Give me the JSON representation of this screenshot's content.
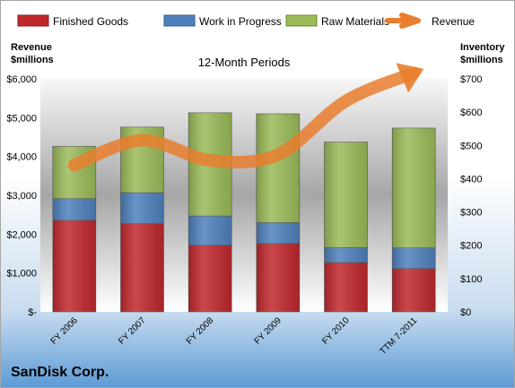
{
  "chart_data": {
    "type": "bar",
    "title": "12-Month Periods",
    "company": "SanDisk Corp.",
    "categories": [
      "FY 2006",
      "FY 2007",
      "FY 2008",
      "FY 2009",
      "FY 2010",
      "TTM 7-2011"
    ],
    "stacked": true,
    "y_left": {
      "label_line1": "Revenue",
      "label_line2": "$millions",
      "ticks": [
        "$-",
        "$1,000",
        "$2,000",
        "$3,000",
        "$4,000",
        "$5,000",
        "$6,000"
      ],
      "range": [
        0,
        6000
      ]
    },
    "y_right": {
      "label_line1": "Inventory",
      "label_line2": "$millions",
      "ticks": [
        "$0",
        "$100",
        "$200",
        "$300",
        "$400",
        "$500",
        "$600",
        "$700"
      ],
      "range": [
        0,
        700
      ]
    },
    "series": [
      {
        "name": "Finished Goods",
        "axis": "right",
        "color": "#c0282d",
        "values": [
          275,
          265,
          200,
          205,
          148,
          130
        ]
      },
      {
        "name": "Work in Progress",
        "axis": "right",
        "color": "#4f81bd",
        "values": [
          65,
          93,
          88,
          63,
          45,
          62
        ]
      },
      {
        "name": "Raw Materials",
        "axis": "right",
        "color": "#9bbb59",
        "values": [
          157,
          197,
          310,
          327,
          317,
          360
        ]
      },
      {
        "name": "Revenue",
        "axis": "left",
        "type": "line",
        "color": "#e97e2e",
        "values": [
          3780,
          4420,
          3900,
          4050,
          5430,
          6150
        ]
      }
    ],
    "legend_position": "top",
    "grid": false
  }
}
